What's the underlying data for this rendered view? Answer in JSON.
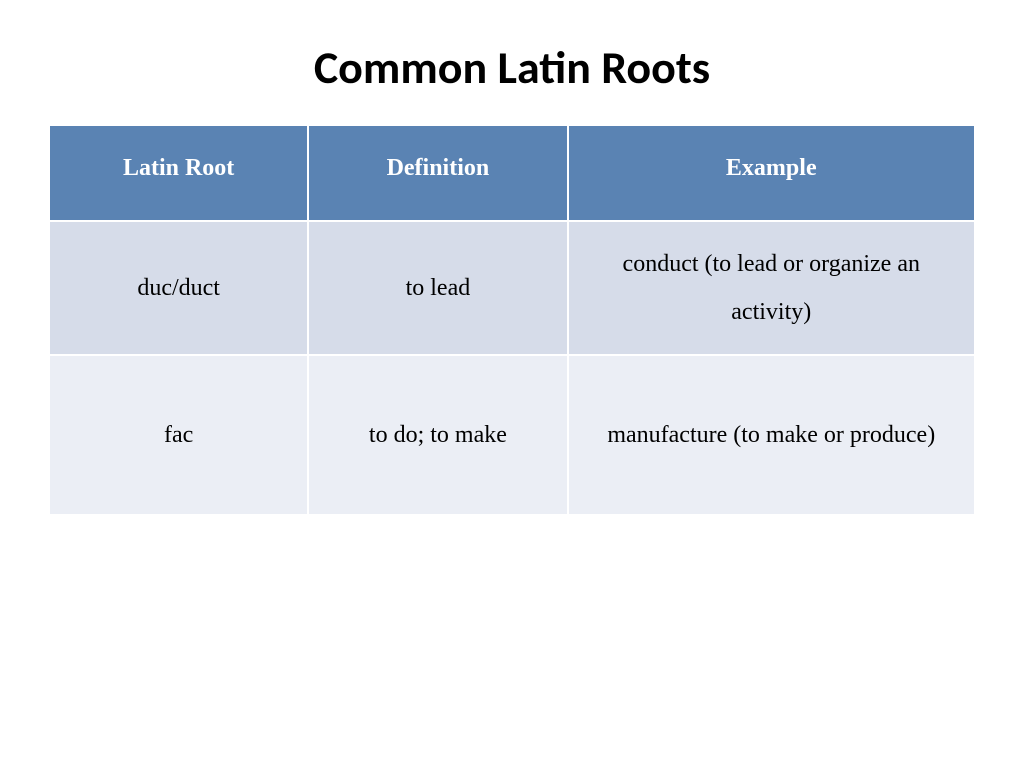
{
  "title": "Common Latin Roots",
  "table": {
    "type": "table",
    "header_bg": "#5a83b3",
    "header_fg": "#ffffff",
    "row_colors": [
      "#d6dce9",
      "#ebeef5"
    ],
    "border_color": "#ffffff",
    "columns": [
      "Latin Root",
      "Definition",
      "Example"
    ],
    "column_widths_pct": [
      28,
      28,
      44
    ],
    "rows": [
      [
        "duc/duct",
        "to lead",
        "conduct (to lead or organize an activity)"
      ],
      [
        "fac",
        "to do; to make",
        "manufacture (to make or produce)"
      ]
    ],
    "header_fontsize": 24,
    "cell_fontsize": 24,
    "font_family": "Times New Roman"
  },
  "title_style": {
    "font_family": "Calibri",
    "font_weight": 700,
    "fontsize": 46,
    "color": "#000000"
  },
  "background_color": "#ffffff"
}
